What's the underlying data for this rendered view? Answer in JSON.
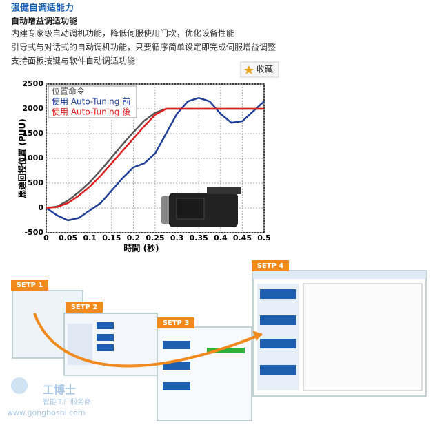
{
  "header": {
    "title": "强健自调适能力",
    "subtitle": "自动增益调适功能",
    "lines": [
      "内建专家级自动调机功能，降低伺服使用门坎，优化设备性能",
      "引导式与对话式的自动调机功能，只要循序简单设定即完成伺服增益调整",
      "支持面板按键与软件自动调适功能"
    ]
  },
  "favorite": "收藏",
  "chart_data": {
    "type": "line",
    "xlabel": "時間 (秒)",
    "ylabel": "馬達回授位置 (PUU)",
    "x": [
      0,
      0.025,
      0.05,
      0.075,
      0.1,
      0.125,
      0.15,
      0.175,
      0.2,
      0.225,
      0.25,
      0.275,
      0.3,
      0.325,
      0.35,
      0.375,
      0.4,
      0.425,
      0.45,
      0.475,
      0.5
    ],
    "series": [
      {
        "name": "位置命令",
        "color": "#555555",
        "values": [
          0,
          30,
          150,
          320,
          520,
          760,
          1020,
          1280,
          1530,
          1760,
          1920,
          2000,
          2000,
          2000,
          2000,
          2000,
          2000,
          2000,
          2000,
          2000,
          2000
        ]
      },
      {
        "name": "使用 Auto-Tuning 前",
        "color": "#1f3f99",
        "values": [
          0,
          -150,
          -250,
          -200,
          -50,
          100,
          350,
          600,
          820,
          900,
          1100,
          1500,
          1900,
          2150,
          2220,
          2150,
          1900,
          1720,
          1750,
          1950,
          2150
        ]
      },
      {
        "name": "使用 Auto-Tuning 後",
        "color": "#e02020",
        "values": [
          0,
          20,
          100,
          250,
          430,
          650,
          900,
          1150,
          1400,
          1650,
          1880,
          2000,
          2000,
          2000,
          2000,
          2000,
          2000,
          2000,
          2000,
          2000,
          2000
        ]
      }
    ],
    "xlim": [
      0,
      0.5
    ],
    "ylim": [
      -500,
      2500
    ],
    "xticks": [
      0,
      0.05,
      0.1,
      0.15,
      0.2,
      0.25,
      0.3,
      0.35,
      0.4,
      0.45,
      0.5
    ],
    "yticks": [
      -500,
      0,
      500,
      1000,
      1500,
      2000,
      2500
    ],
    "grid": true
  },
  "steps": [
    "SETP 1",
    "SETP 2",
    "SETP 3",
    "SETP 4"
  ],
  "watermark": {
    "brand": "工博士",
    "tagline": "智能工厂服务商",
    "url": "www.gongboshi.com"
  }
}
